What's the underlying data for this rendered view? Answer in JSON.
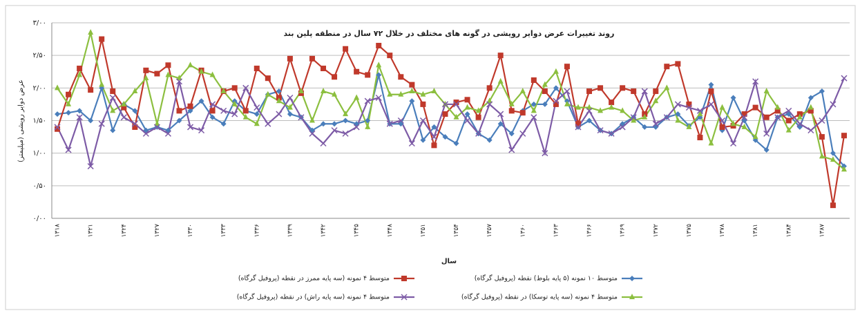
{
  "chart_data": {
    "type": "line",
    "title": "روند تغییرات عرض دوایر رویشی در گونه های مختلف در خلال ۷۲ سال در منطقه پلین بند",
    "x_label": "سال",
    "y_label": "عرض دوایر رویشی (میلیمتر)",
    "categories": [
      "۱۳۱۸",
      null,
      null,
      "۱۳۲۱",
      null,
      null,
      "۱۳۲۴",
      null,
      null,
      "۱۳۲۷",
      null,
      null,
      "۱۳۳۰",
      null,
      null,
      "۱۳۳۳",
      null,
      null,
      "۱۳۳۶",
      null,
      null,
      "۱۳۳۹",
      null,
      null,
      "۱۳۴۲",
      null,
      null,
      "۱۳۴۵",
      null,
      null,
      "۱۳۴۸",
      null,
      null,
      "۱۳۵۱",
      null,
      null,
      "۱۳۵۴",
      null,
      null,
      "۱۳۵۷",
      null,
      null,
      "۱۳۶۰",
      null,
      null,
      "۱۳۶۳",
      null,
      null,
      "۱۳۶۶",
      null,
      null,
      "۱۳۶۹",
      null,
      null,
      "۱۳۷۲",
      null,
      null,
      "۱۳۷۵",
      null,
      null,
      "۱۳۷۸",
      null,
      null,
      "۱۳۸۱",
      null,
      null,
      "۱۳۸۴",
      null,
      null,
      "۱۳۸۷",
      null,
      null
    ],
    "ylim": [
      0,
      3
    ],
    "yticks": [
      {
        "value": 0,
        "label": "۰/۰۰"
      },
      {
        "value": 0.5,
        "label": "۰/۵۰"
      },
      {
        "value": 1,
        "label": "۱/۰۰"
      },
      {
        "value": 1.5,
        "label": "۱/۵۰"
      },
      {
        "value": 2,
        "label": "۲/۰۰"
      },
      {
        "value": 2.5,
        "label": "۲/۵۰"
      },
      {
        "value": 3,
        "label": "۳/۰۰"
      }
    ],
    "grid": true,
    "legend_position": "bottom",
    "series": [
      {
        "name": "متوسط ۱۰ نمونه (۵ پایه بلوط) نقطه (پروفیل گرگاه)",
        "color": "#4a7ebb",
        "marker": "diamond",
        "values": [
          1.6,
          1.62,
          1.65,
          1.5,
          2.0,
          1.35,
          1.75,
          1.65,
          1.35,
          1.4,
          1.35,
          1.5,
          1.65,
          1.8,
          1.55,
          1.45,
          1.8,
          1.65,
          1.6,
          1.9,
          1.95,
          1.6,
          1.55,
          1.35,
          1.45,
          1.45,
          1.5,
          1.45,
          1.5,
          2.2,
          1.45,
          1.45,
          1.8,
          1.2,
          1.4,
          1.25,
          1.15,
          1.6,
          1.3,
          1.2,
          1.45,
          1.3,
          1.65,
          1.75,
          1.75,
          2.0,
          1.8,
          1.4,
          1.5,
          1.35,
          1.3,
          1.45,
          1.55,
          1.4,
          1.4,
          1.55,
          1.6,
          1.42,
          1.55,
          2.05,
          1.35,
          1.85,
          1.5,
          1.2,
          1.05,
          1.55,
          1.6,
          1.4,
          1.85,
          1.95,
          1.0,
          0.8
        ]
      },
      {
        "name": "متوسط ۴ نمونه (سه پایه ممرز در نقطه (پروفیل گرگاه)",
        "color": "#c0392b",
        "marker": "square",
        "values": [
          1.37,
          1.9,
          2.3,
          1.97,
          2.75,
          1.95,
          1.7,
          1.4,
          2.27,
          2.22,
          2.35,
          1.65,
          1.72,
          2.27,
          1.65,
          1.95,
          2.0,
          1.65,
          2.3,
          2.15,
          1.85,
          2.45,
          1.92,
          2.45,
          2.3,
          2.17,
          2.6,
          2.25,
          2.2,
          2.65,
          2.5,
          2.17,
          2.05,
          1.75,
          1.12,
          1.6,
          1.78,
          1.82,
          1.55,
          2.0,
          2.5,
          1.65,
          1.62,
          2.12,
          1.95,
          1.75,
          2.33,
          1.45,
          1.95,
          2.0,
          1.78,
          2.0,
          1.95,
          1.6,
          1.95,
          2.33,
          2.37,
          1.75,
          1.24,
          1.95,
          1.4,
          1.42,
          1.6,
          1.7,
          1.55,
          1.65,
          1.5,
          1.6,
          1.65,
          1.25,
          0.2,
          1.27
        ]
      },
      {
        "name": "متوسط ۴ نمونه (سه پایه توسکا) در نقطه (پروفیل گرگاه)",
        "color": "#8cbf3f",
        "marker": "triangle",
        "values": [
          2.0,
          1.75,
          2.2,
          2.85,
          2.05,
          1.65,
          1.75,
          1.95,
          2.15,
          1.45,
          2.2,
          2.15,
          2.35,
          2.25,
          2.2,
          1.95,
          1.75,
          1.55,
          1.45,
          1.9,
          1.8,
          1.7,
          1.95,
          1.5,
          1.95,
          1.9,
          1.6,
          1.85,
          1.4,
          2.35,
          1.9,
          1.9,
          1.95,
          1.9,
          1.95,
          1.75,
          1.55,
          1.7,
          1.65,
          1.8,
          2.1,
          1.75,
          1.95,
          1.65,
          2.05,
          2.25,
          1.75,
          1.7,
          1.7,
          1.65,
          1.7,
          1.65,
          1.5,
          1.55,
          1.8,
          2.0,
          1.5,
          1.4,
          1.6,
          1.15,
          1.7,
          1.45,
          1.4,
          1.25,
          1.95,
          1.7,
          1.35,
          1.55,
          1.7,
          0.95,
          0.9,
          0.75
        ]
      },
      {
        "name": "متوسط ۴ نمونه (سه پایه راش) در نقطه (پروفیل گرگاه)",
        "color": "#7d5ba6",
        "marker": "x",
        "values": [
          1.4,
          1.05,
          1.55,
          0.8,
          1.45,
          1.85,
          1.55,
          1.45,
          1.3,
          1.4,
          1.3,
          2.1,
          1.4,
          1.35,
          1.75,
          1.65,
          1.6,
          2.0,
          1.7,
          1.45,
          1.6,
          1.85,
          1.55,
          1.3,
          1.15,
          1.35,
          1.3,
          1.4,
          1.8,
          1.85,
          1.45,
          1.5,
          1.15,
          1.5,
          1.25,
          1.75,
          1.75,
          1.5,
          1.3,
          1.75,
          1.6,
          1.05,
          1.3,
          1.55,
          1.0,
          1.8,
          1.95,
          1.4,
          1.65,
          1.35,
          1.3,
          1.4,
          1.55,
          1.95,
          1.45,
          1.55,
          1.75,
          1.7,
          1.65,
          1.75,
          1.5,
          1.15,
          1.55,
          2.1,
          1.3,
          1.55,
          1.65,
          1.45,
          1.35,
          1.5,
          1.75,
          2.15
        ]
      }
    ]
  }
}
